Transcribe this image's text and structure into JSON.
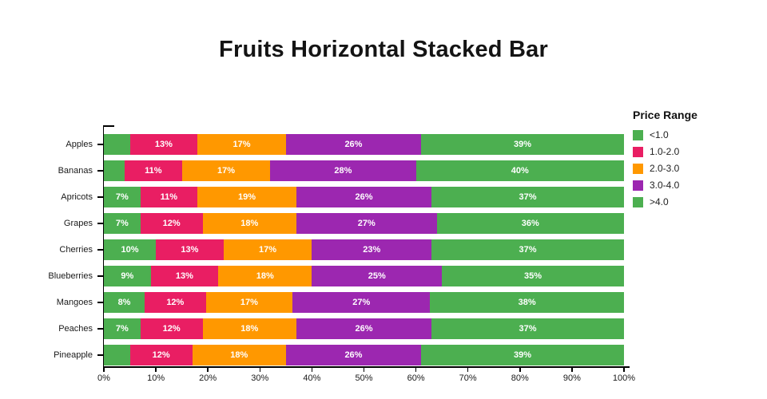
{
  "chart_data": {
    "type": "bar",
    "orientation": "horizontal",
    "stacked": true,
    "title": "Fruits Horizontal Stacked Bar",
    "legend_title": "Price Range",
    "legend_position": "right",
    "grid": false,
    "xlim": [
      0,
      100
    ],
    "x_ticks": [
      "0%",
      "10%",
      "20%",
      "30%",
      "40%",
      "50%",
      "60%",
      "70%",
      "80%",
      "90%",
      "100%"
    ],
    "categories": [
      "Apples",
      "Bananas",
      "Apricots",
      "Grapes",
      "Cherries",
      "Blueberries",
      "Mangoes",
      "Peaches",
      "Pineapple"
    ],
    "series": [
      {
        "name": "<1.0",
        "color": "#4caf50",
        "values": [
          5,
          4,
          7,
          7,
          10,
          9,
          8,
          7,
          5
        ]
      },
      {
        "name": "1.0-2.0",
        "color": "#e91e63",
        "values": [
          13,
          11,
          11,
          12,
          13,
          13,
          12,
          12,
          12
        ]
      },
      {
        "name": "2.0-3.0",
        "color": "#ff9800",
        "values": [
          17,
          17,
          19,
          18,
          17,
          18,
          17,
          18,
          18
        ]
      },
      {
        "name": "3.0-4.0",
        "color": "#9c27b0",
        "values": [
          26,
          28,
          26,
          27,
          23,
          25,
          27,
          26,
          26
        ]
      },
      {
        "name": ">4.0",
        "color": "#4caf50",
        "values": [
          39,
          40,
          37,
          36,
          37,
          35,
          38,
          37,
          39
        ]
      }
    ],
    "value_label_suffix": "%",
    "label_min_visible": 6,
    "axis_color": "#000000",
    "text_color": "#1a1a1a",
    "bar_label_color": "#ffffff"
  }
}
